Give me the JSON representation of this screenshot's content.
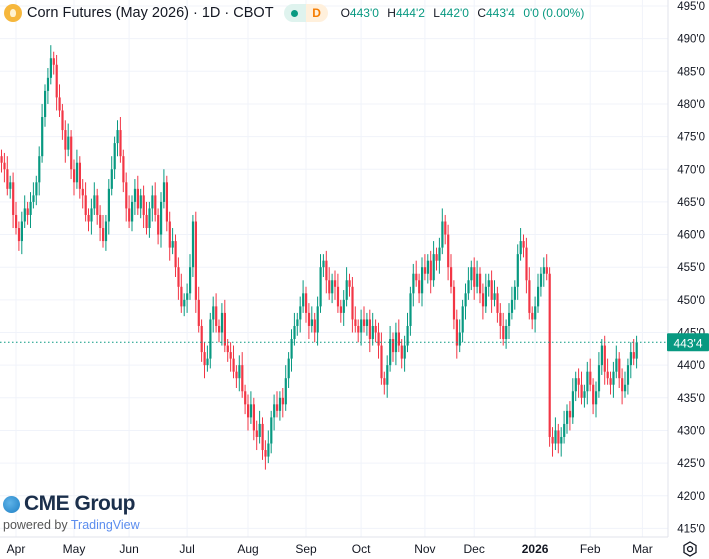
{
  "header": {
    "title": "Corn Futures (May 2026) · 1D · CBOT",
    "status_dot": "market-open",
    "delay_badge": "D",
    "open_label": "O",
    "open": "443'0",
    "high_label": "H",
    "high": "444'2",
    "low_label": "L",
    "low": "442'0",
    "close_label": "C",
    "close": "443'4",
    "change": "0'0 (0.00%)"
  },
  "branding": {
    "logo": "CME Group",
    "powered_by": "powered by",
    "tradingview": "TradingView"
  },
  "colors": {
    "up": "#089981",
    "down": "#f23645",
    "grid": "#f0f3fa",
    "last_price": "#089981"
  },
  "chart_data": {
    "type": "candlestick",
    "ylim": [
      415,
      495
    ],
    "y_ticks": [
      {
        "value": 495,
        "label": "495'0"
      },
      {
        "value": 490,
        "label": "490'0"
      },
      {
        "value": 485,
        "label": "485'0"
      },
      {
        "value": 480,
        "label": "480'0"
      },
      {
        "value": 475,
        "label": "475'0"
      },
      {
        "value": 470,
        "label": "470'0"
      },
      {
        "value": 465,
        "label": "465'0"
      },
      {
        "value": 460,
        "label": "460'0"
      },
      {
        "value": 455,
        "label": "455'0"
      },
      {
        "value": 450,
        "label": "450'0"
      },
      {
        "value": 445,
        "label": "445'0"
      },
      {
        "value": 440,
        "label": "440'0"
      },
      {
        "value": 435,
        "label": "435'0"
      },
      {
        "value": 430,
        "label": "430'0"
      },
      {
        "value": 425,
        "label": "425'0"
      },
      {
        "value": 420,
        "label": "420'0"
      },
      {
        "value": 415,
        "label": "415'0"
      }
    ],
    "x_ticks": [
      {
        "label": "Apr",
        "index": 5
      },
      {
        "label": "May",
        "index": 25
      },
      {
        "label": "Jun",
        "index": 44
      },
      {
        "label": "Jul",
        "index": 64
      },
      {
        "label": "Aug",
        "index": 85
      },
      {
        "label": "Sep",
        "index": 105
      },
      {
        "label": "Oct",
        "index": 124
      },
      {
        "label": "Nov",
        "index": 146
      },
      {
        "label": "Dec",
        "index": 163
      },
      {
        "label": "2026",
        "index": 184,
        "bold": true
      },
      {
        "label": "Feb",
        "index": 203
      },
      {
        "label": "Mar",
        "index": 221
      }
    ],
    "last_price": {
      "value": 443.5,
      "label": "443'4"
    },
    "closes": [
      471,
      470,
      467,
      468,
      463,
      461,
      459,
      462,
      464,
      463,
      465,
      466,
      468,
      472,
      478,
      482,
      484,
      487,
      486,
      481,
      479,
      476,
      473,
      475,
      470,
      468,
      471,
      467,
      466,
      463,
      462,
      464,
      466,
      463,
      461,
      459,
      462,
      467,
      470,
      474,
      476,
      472,
      468,
      464,
      462,
      465,
      467,
      464,
      466,
      463,
      461,
      464,
      466,
      463,
      460,
      465,
      468,
      462,
      458,
      459,
      455,
      452,
      449,
      450,
      451,
      455,
      462,
      450,
      446,
      442,
      440,
      441,
      447,
      449,
      446,
      445,
      448,
      443,
      442,
      441,
      439,
      438,
      440,
      436,
      434,
      432,
      434,
      430,
      429,
      431,
      427,
      426,
      428,
      432,
      434,
      433,
      435,
      434,
      438,
      441,
      444,
      446,
      447,
      449,
      451,
      448,
      446,
      447,
      445,
      449,
      455,
      456,
      453,
      451,
      453,
      452,
      449,
      448,
      450,
      453,
      452,
      447,
      446,
      445,
      447,
      446,
      447,
      444,
      446,
      445,
      443,
      438,
      437,
      440,
      444,
      442,
      445,
      443,
      441,
      443,
      446,
      451,
      454,
      453,
      451,
      455,
      454,
      456,
      453,
      457,
      456,
      458,
      462,
      460,
      455,
      452,
      447,
      443,
      445,
      449,
      451,
      453,
      455,
      452,
      454,
      451,
      449,
      452,
      453,
      450,
      451,
      448,
      446,
      444,
      446,
      448,
      450,
      452,
      457,
      459,
      458,
      453,
      448,
      447,
      449,
      452,
      454,
      455,
      454,
      429,
      428,
      430,
      428,
      429,
      431,
      433,
      432,
      436,
      438,
      437,
      435,
      436,
      439,
      437,
      434,
      436,
      440,
      443,
      439,
      438,
      437,
      439,
      441,
      438,
      436,
      437,
      440,
      442,
      441,
      443.5
    ],
    "first_open": 472
  }
}
